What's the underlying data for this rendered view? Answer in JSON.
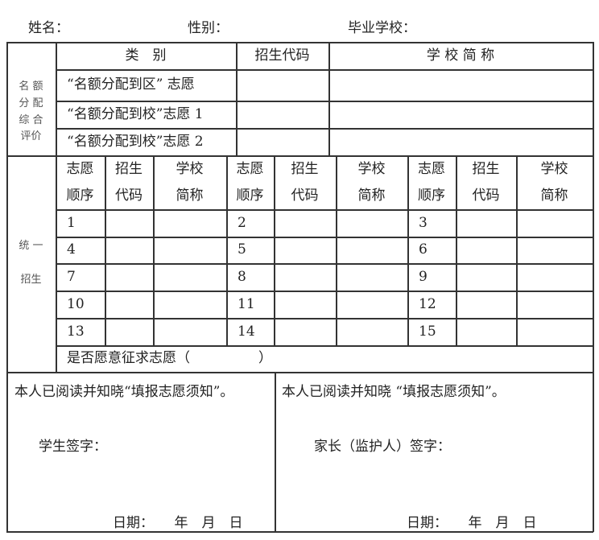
{
  "header": {
    "name_label": "姓名：",
    "gender_label": "性别：",
    "school_label": "毕业学校："
  },
  "quota": {
    "col_category": "类　别",
    "col_code": "招生代码",
    "col_school": "学 校 简 称",
    "section_label": "名 额\n分 配\n综 合\n评价",
    "rows": [
      "“名额分配到区” 志愿",
      "“名额分配到校”志愿 1",
      "“名额分配到校”志愿 2"
    ]
  },
  "unified": {
    "section_label": "统 一\n\n招生",
    "col_headers": [
      "志愿\n顺序",
      "招生\n代码",
      "学校\n简称"
    ],
    "orders": [
      [
        "1",
        "2",
        "3"
      ],
      [
        "4",
        "5",
        "6"
      ],
      [
        "7",
        "8",
        "9"
      ],
      [
        "10",
        "11",
        "12"
      ],
      [
        "13",
        "14",
        "15"
      ]
    ],
    "solicit": "是否愿意征求志愿（　　　　　）"
  },
  "signature": {
    "student_notice": "本人已阅读并知晓“填报志愿须知”。",
    "parent_notice": "本人已阅读并知晓 “填报志愿须知”。",
    "student_sign": "学生签字：",
    "parent_sign": "家长（监护人）签字：",
    "date_label": "日期：　　年　月　日"
  }
}
